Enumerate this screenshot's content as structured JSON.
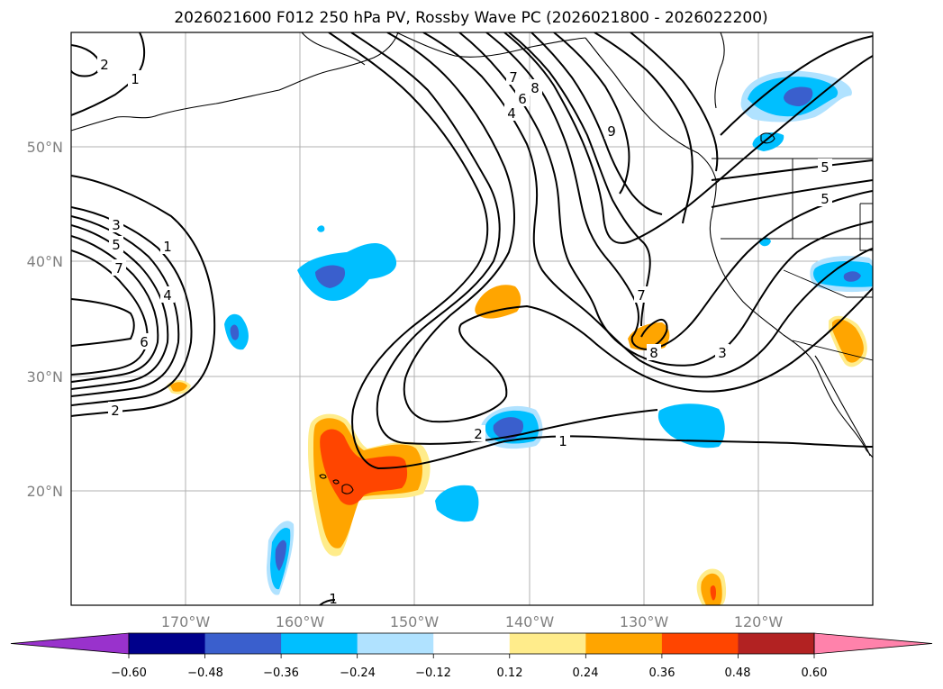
{
  "title": "2026021600 F012 250 hPa PV, Rossby Wave PC (2026021800 - 2026022200)",
  "lat_labels": [
    "50°N",
    "40°N",
    "30°N",
    "20°N"
  ],
  "lon_labels": [
    "170°W",
    "160°W",
    "150°W",
    "140°W",
    "130°W",
    "120°W"
  ],
  "colorbar": {
    "ticks": [
      "−0.60",
      "−0.48",
      "−0.36",
      "−0.24",
      "−0.12",
      "0.12",
      "0.24",
      "0.36",
      "0.48",
      "0.60"
    ],
    "colors": [
      "#9932cc",
      "#00008b",
      "#3a5fcd",
      "#00bfff",
      "#b0e2ff",
      "#ffffff",
      "#ffec8b",
      "#ffa500",
      "#ff4500",
      "#b22222",
      "#ff82ab"
    ],
    "extend": "both"
  },
  "contour_labels": [
    "2",
    "1",
    "3",
    "5",
    "7",
    "1",
    "4",
    "6",
    "2",
    "7",
    "6",
    "4",
    "8",
    "9",
    "5",
    "5",
    "7",
    "8",
    "3",
    "2",
    "1",
    "1"
  ],
  "map": {
    "projection": "PlateCarree",
    "lon_range": [
      -180,
      -110
    ],
    "lat_range": [
      10,
      60
    ],
    "gridlines": true,
    "field": "250 hPa PV",
    "shading": "Rossby Wave PC"
  }
}
